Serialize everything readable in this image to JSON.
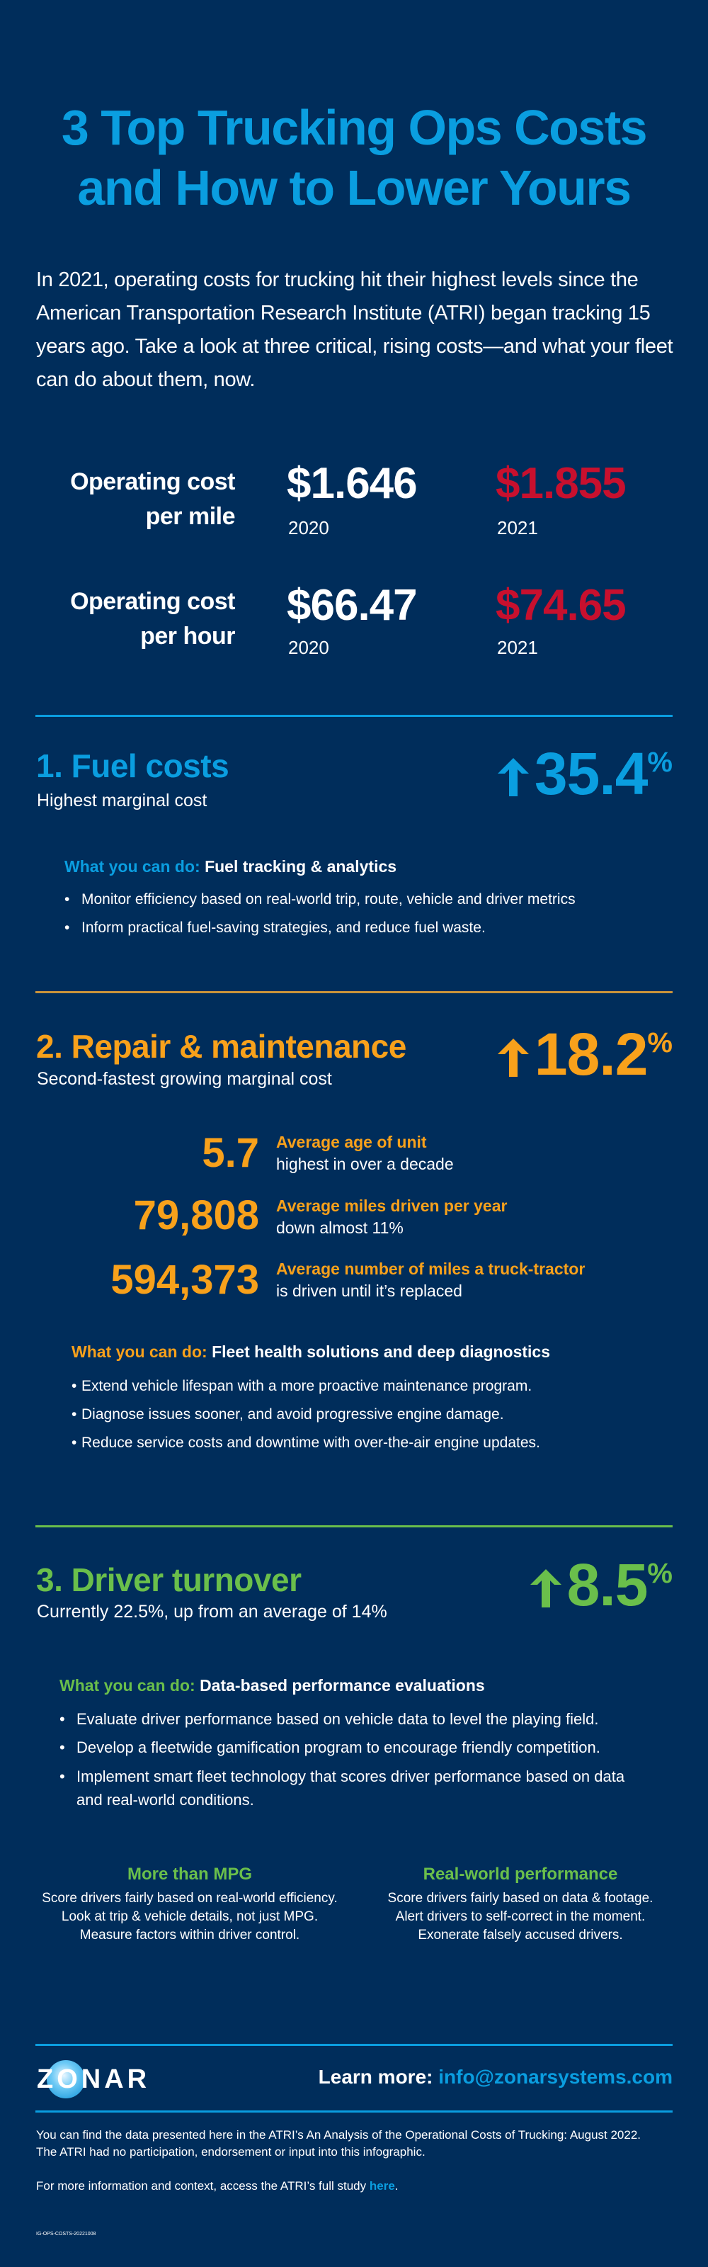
{
  "colors": {
    "background": "#002d5b",
    "blue": "#0a9ee0",
    "orange": "#f8a11b",
    "green": "#6abf4b",
    "red": "#c8102e"
  },
  "header": {
    "title_line1": "3 Top Trucking Ops Costs",
    "title_line2": "and How to Lower Yours",
    "intro": "In 2021, operating costs for trucking hit their highest levels since the American Transportation Research Institute (ATRI) began tracking 15 years ago. Take a look at three critical, rising costs—and what your fleet can do about them, now."
  },
  "operating_costs": [
    {
      "label_line1": "Operating cost",
      "label_line2": "per mile",
      "value_2020": "$1.646",
      "year_2020": "2020",
      "value_2021": "$1.855",
      "year_2021": "2021"
    },
    {
      "label_line1": "Operating cost",
      "label_line2": "per hour",
      "value_2020": "$66.47",
      "year_2020": "2020",
      "value_2021": "$74.65",
      "year_2021": "2021"
    }
  ],
  "sections": [
    {
      "title": "1. Fuel costs",
      "subtitle": "Highest marginal cost",
      "increase": "35.4",
      "percent_sign": "%",
      "increase_icon": "arrow-up-icon",
      "what_label": "What you can do:",
      "what_value": "Fuel tracking & analytics",
      "bullets": [
        "Monitor efficiency based on real-world trip, route, vehicle and driver metrics",
        "Inform practical fuel-saving strategies, and reduce fuel waste."
      ]
    },
    {
      "title": "2. Repair & maintenance",
      "subtitle": "Second-fastest growing marginal cost",
      "increase": "18.2",
      "percent_sign": "%",
      "increase_icon": "arrow-up-icon",
      "stats": [
        {
          "value": "5.7",
          "label": "Average age of unit",
          "detail": "highest in over a decade"
        },
        {
          "value": "79,808",
          "label": "Average miles driven per year",
          "detail": "down almost 11%"
        },
        {
          "value": "594,373",
          "label": "Average number of miles a truck-tractor",
          "detail": "is driven until it’s replaced"
        }
      ],
      "what_label": "What you can do:",
      "what_value": "Fleet health solutions and deep diagnostics",
      "bullets": [
        "Extend vehicle lifespan with a more proactive maintenance program.",
        "Diagnose issues sooner, and avoid progressive engine damage.",
        "Reduce service costs and downtime with over-the-air engine updates."
      ]
    },
    {
      "title": "3. Driver turnover",
      "subtitle": "Currently 22.5%, up from an average of 14%",
      "increase": "8.5",
      "percent_sign": "%",
      "increase_icon": "arrow-up-icon",
      "what_label": "What you can do:",
      "what_value": "Data-based performance evaluations",
      "bullets": [
        "Evaluate driver performance based on vehicle data to level the playing field.",
        "Develop a fleetwide gamification program to encourage friendly competition.",
        "Implement smart fleet technology that scores driver performance based on data and real-world conditions."
      ],
      "columns": [
        {
          "heading": "More than MPG",
          "lines": [
            "Score drivers fairly based on real-world efficiency.",
            "Look at trip & vehicle details, not just MPG.",
            "Measure factors within driver control."
          ]
        },
        {
          "heading": "Real-world performance",
          "lines": [
            "Score drivers fairly based on data & footage.",
            "Alert drivers to self-correct in the moment.",
            "Exonerate falsely accused drivers."
          ]
        }
      ]
    }
  ],
  "footer": {
    "logo_text": "ZONAR",
    "learn_more_label": "Learn more:",
    "email": "info@zonarsystems.com",
    "disclaimer_line1": "You can find the data presented here in the ATRI’s An Analysis of the Operational Costs of Trucking: August 2022.",
    "disclaimer_line2": "The ATRI had no participation, endorsement or input into this infographic.",
    "study_text": "For more information and context, access the ATRI’s full study ",
    "study_link": "here",
    "study_end": ".",
    "code": "IG-OPS-COSTS-20221008"
  }
}
